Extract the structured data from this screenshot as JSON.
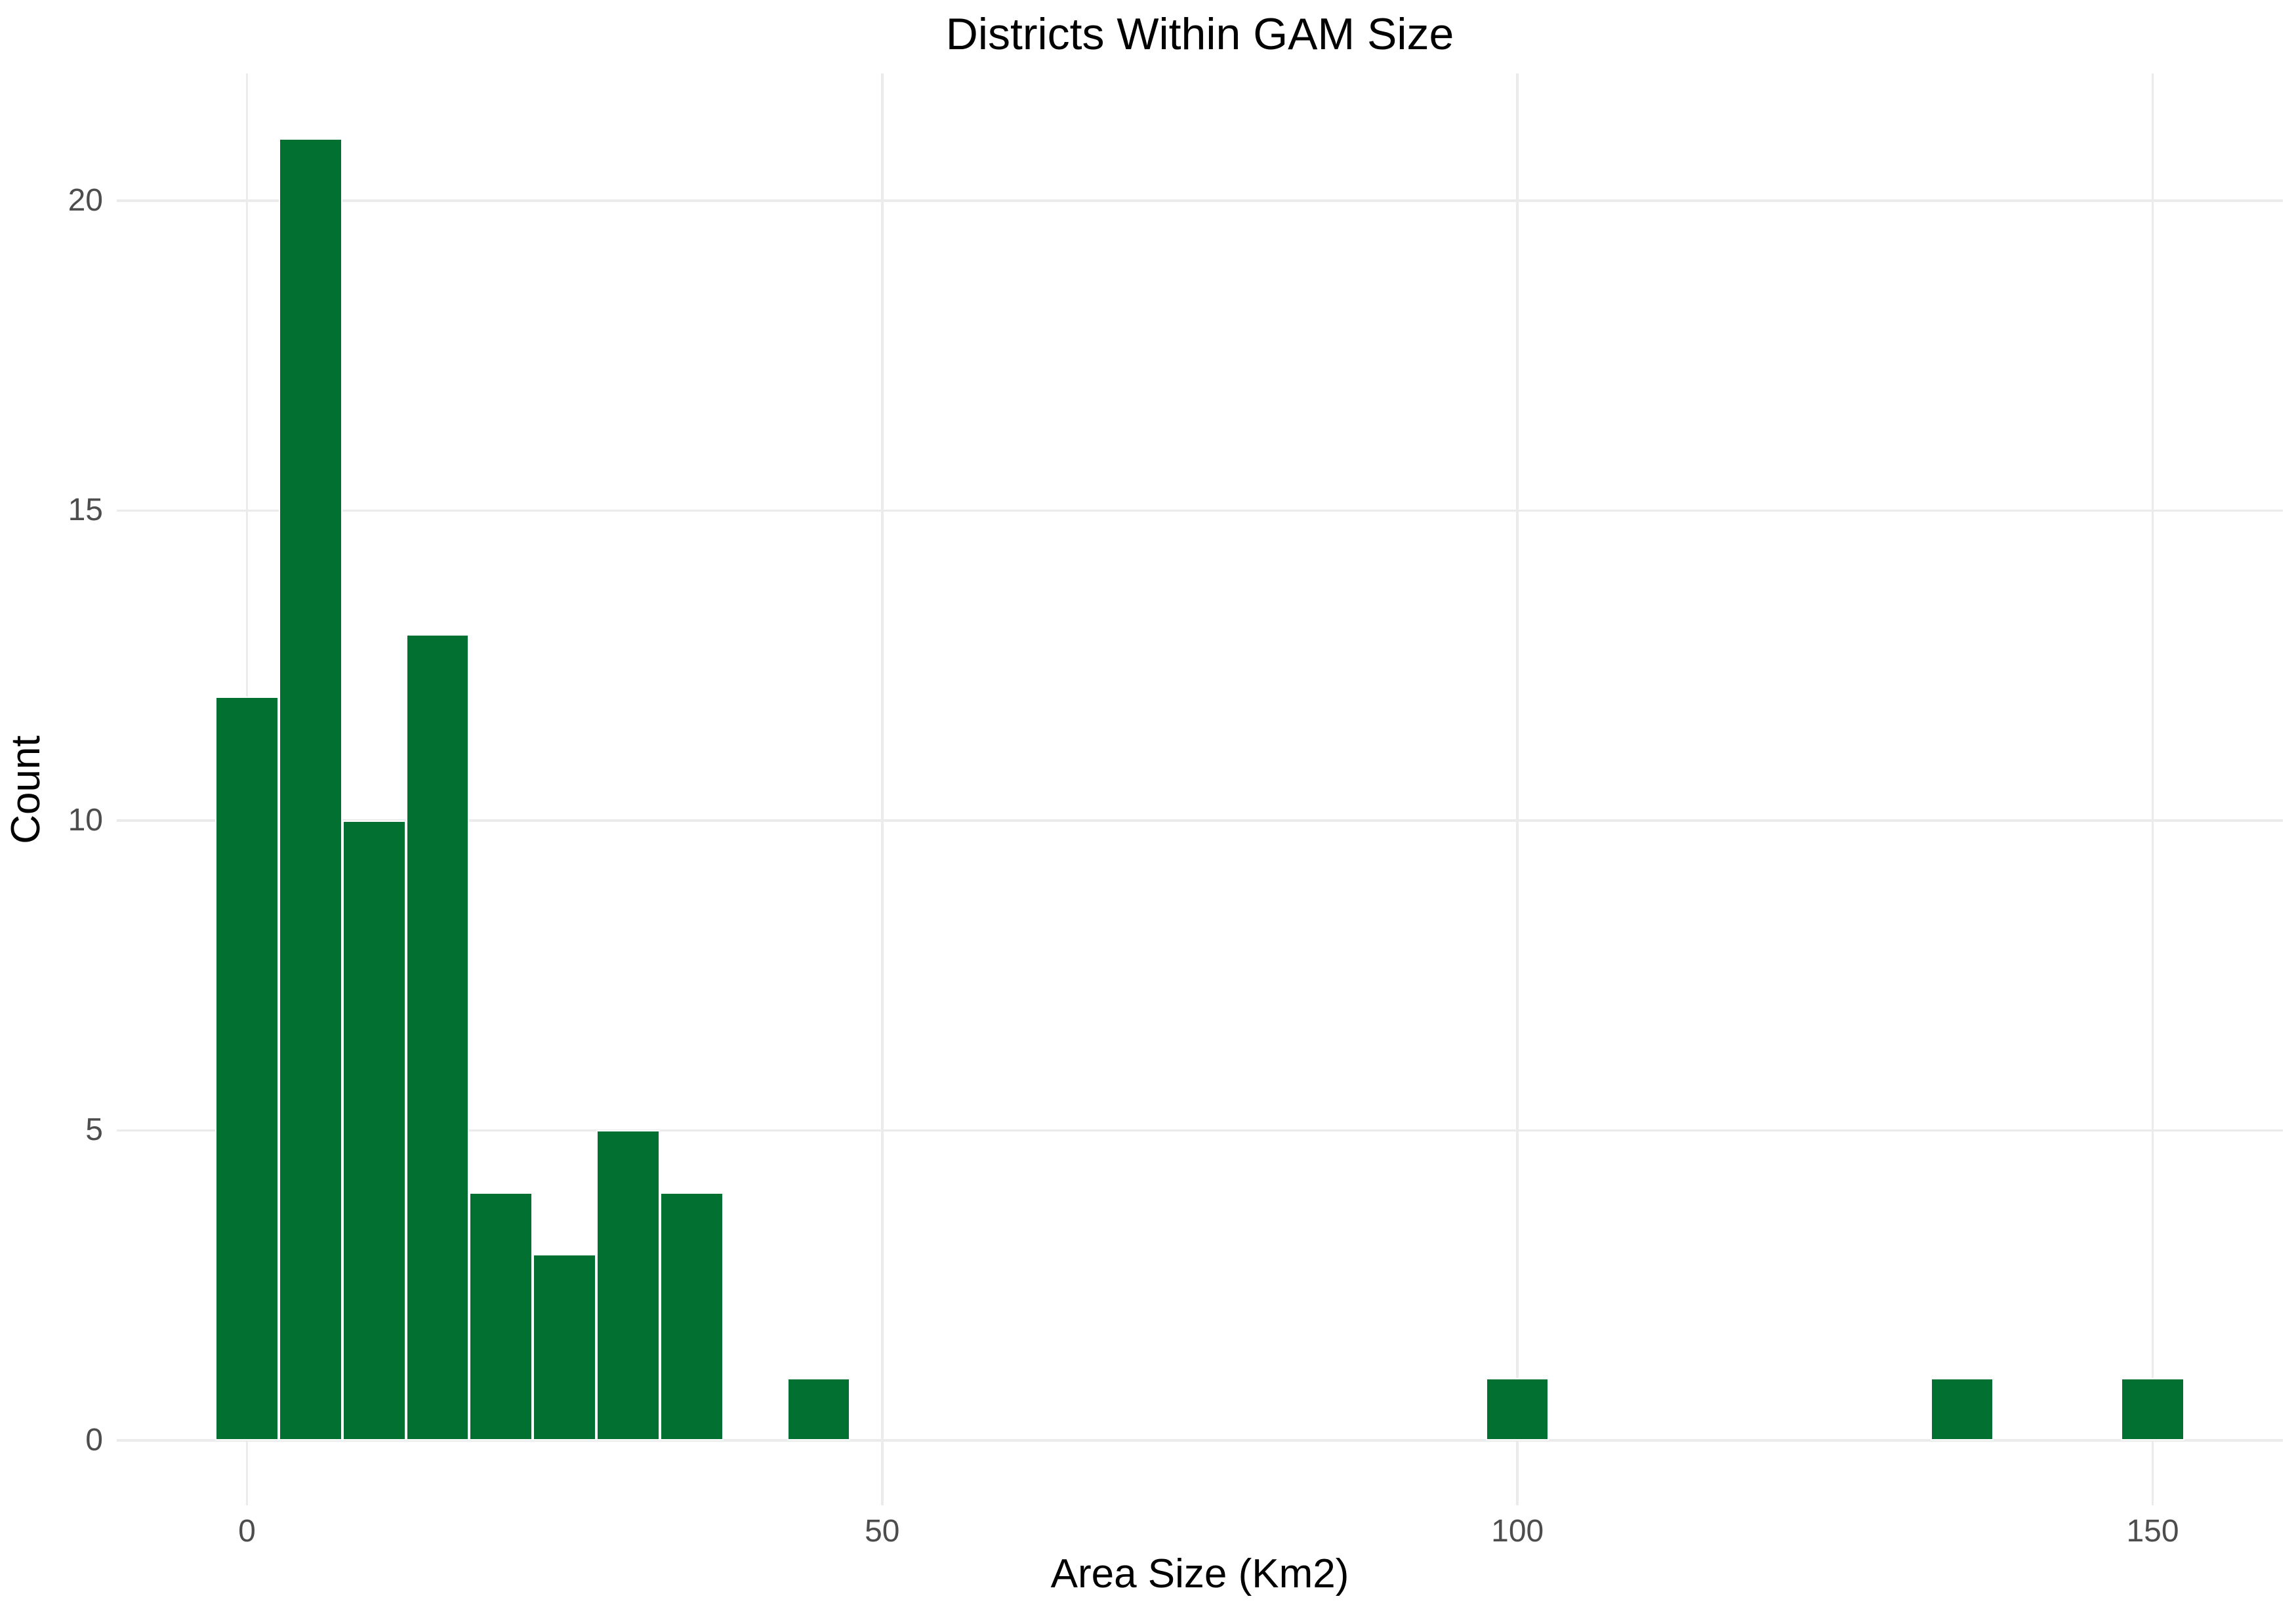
{
  "chart_data": {
    "type": "bar",
    "subtype": "histogram",
    "title": "Districts Within GAM Size",
    "xlabel": "Area Size (Km2)",
    "ylabel": "Count",
    "bin_width": 5,
    "bin_centers": [
      0,
      5,
      10,
      15,
      20,
      25,
      30,
      35,
      45,
      100,
      135,
      150
    ],
    "counts": [
      12,
      21,
      10,
      13,
      4,
      3,
      5,
      4,
      1,
      1,
      1,
      1
    ],
    "x_ticks": [
      0,
      50,
      100,
      150
    ],
    "y_ticks": [
      0,
      5,
      10,
      15,
      20
    ],
    "xlim": [
      -10.25,
      160.25
    ],
    "ylim": [
      -1.05,
      22.05
    ],
    "grid": true,
    "legend": "none",
    "colors": {
      "bar_fill": "#027030",
      "bar_stroke": "#ffffff",
      "grid": "#ebebeb",
      "tick_label": "#4d4d4d",
      "axis_title": "#000000",
      "title": "#000000",
      "background": "#ffffff"
    }
  }
}
